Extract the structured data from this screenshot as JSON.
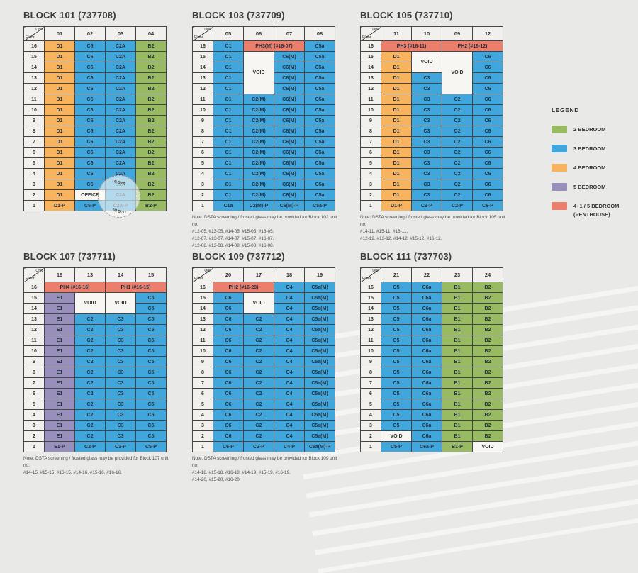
{
  "corner": {
    "unit": "Unit",
    "floor": "Floor"
  },
  "watermark": {
    "top": ".com",
    "bottom": ".com"
  },
  "legend": {
    "title": "LEGEND",
    "items": [
      {
        "label": "2 BEDROOM",
        "color": "#97ba62"
      },
      {
        "label": "3 BEDROOM",
        "color": "#41a6dc"
      },
      {
        "label": "4 BEDROOM",
        "color": "#f7b35e"
      },
      {
        "label": "5 BEDROOM",
        "color": "#9890ba"
      },
      {
        "label": "4+1 / 5 BEDROOM",
        "label2": "(PENTHOUSE)",
        "color": "#ec7f6c"
      }
    ]
  },
  "blocks": [
    {
      "title": "BLOCK 101 (737708)",
      "units": [
        "01",
        "02",
        "03",
        "04"
      ],
      "row_groups": [
        {
          "floors": [
            16,
            15,
            14,
            13,
            12,
            11,
            10,
            9,
            8,
            7,
            6,
            5,
            4,
            3
          ],
          "cells": [
            {
              "t": "D1",
              "c": "bed4"
            },
            {
              "t": "C6",
              "c": "bed3"
            },
            {
              "t": "C2A",
              "c": "bed3"
            },
            {
              "t": "B2",
              "c": "bed2"
            }
          ]
        },
        {
          "floors": [
            2
          ],
          "cells": [
            {
              "t": "D1",
              "c": "bed4"
            },
            {
              "t": "OFFICE",
              "c": "void"
            },
            {
              "t": "C2A",
              "c": "bed3"
            },
            {
              "t": "B2",
              "c": "bed2"
            }
          ]
        },
        {
          "floors": [
            1
          ],
          "cells": [
            {
              "t": "D1-P",
              "c": "bed4"
            },
            {
              "t": "C6-P",
              "c": "bed3"
            },
            {
              "t": "C2A-P",
              "c": "bed3"
            },
            {
              "t": "B2-P",
              "c": "bed2"
            }
          ]
        }
      ],
      "note_lines": []
    },
    {
      "title": "BLOCK 103 (737709)",
      "units": [
        "05",
        "06",
        "07",
        "08"
      ],
      "row_groups": [
        {
          "floors": [
            16
          ],
          "cells": [
            {
              "t": "C1",
              "c": "bed3"
            },
            {
              "t": "PH3(M) (#16-07)",
              "c": "ph",
              "cs": 2
            },
            {
              "t": "C5a",
              "c": "bed3"
            }
          ]
        },
        {
          "floors": [
            15
          ],
          "cells": [
            {
              "t": "C1",
              "c": "bed3"
            },
            {
              "t": "VOID",
              "c": "void",
              "rs": 4
            },
            {
              "t": "C6(M)",
              "c": "bed3"
            },
            {
              "t": "C5a",
              "c": "bed3"
            }
          ]
        },
        {
          "floors": [
            14,
            13,
            12
          ],
          "cells": [
            {
              "t": "C1",
              "c": "bed3"
            },
            {
              "t": "C6(M)",
              "c": "bed3"
            },
            {
              "t": "C5a",
              "c": "bed3"
            }
          ]
        },
        {
          "floors": [
            11,
            10,
            9,
            8,
            7,
            6,
            5,
            4,
            3,
            2
          ],
          "cells": [
            {
              "t": "C1",
              "c": "bed3"
            },
            {
              "t": "C2(M)",
              "c": "bed3"
            },
            {
              "t": "C6(M)",
              "c": "bed3"
            },
            {
              "t": "C5a",
              "c": "bed3"
            }
          ]
        },
        {
          "floors": [
            1
          ],
          "cells": [
            {
              "t": "C1a",
              "c": "bed3"
            },
            {
              "t": "C2(M)-P",
              "c": "bed3"
            },
            {
              "t": "C6(M)-P",
              "c": "bed3"
            },
            {
              "t": "C5a-P",
              "c": "bed3"
            }
          ]
        }
      ],
      "note_lines": [
        "Note: DSTA screening / frosted glass may be provided for Block 103 unit no:",
        "#12-05, #13-05, #14-05, #15-05, #16-05,",
        "#12-07, #13-07, #14-07, #15-07, #16-07,",
        "#12-08, #13-08, #14-08, #15-08, #16-08."
      ]
    },
    {
      "title": "BLOCK 105 (737710)",
      "units": [
        "11",
        "10",
        "09",
        "12"
      ],
      "row_groups": [
        {
          "floors": [
            16
          ],
          "cells": [
            {
              "t": "PH3 (#16-11)",
              "c": "ph",
              "cs": 2
            },
            {
              "t": "PH2 (#16-12)",
              "c": "ph",
              "cs": 2
            }
          ]
        },
        {
          "floors": [
            15
          ],
          "cells": [
            {
              "t": "D1",
              "c": "bed4"
            },
            {
              "t": "VOID",
              "c": "void",
              "rs": 2
            },
            {
              "t": "VOID",
              "c": "void",
              "rs": 4
            },
            {
              "t": "C6",
              "c": "bed3"
            }
          ]
        },
        {
          "floors": [
            14
          ],
          "cells": [
            {
              "t": "D1",
              "c": "bed4"
            },
            {
              "t": "C6",
              "c": "bed3"
            }
          ]
        },
        {
          "floors": [
            13,
            12
          ],
          "cells": [
            {
              "t": "D1",
              "c": "bed4"
            },
            {
              "t": "C3",
              "c": "bed3"
            },
            {
              "t": "C6",
              "c": "bed3"
            }
          ]
        },
        {
          "floors": [
            11,
            10,
            9,
            8,
            7,
            6,
            5,
            4,
            3,
            2
          ],
          "cells": [
            {
              "t": "D1",
              "c": "bed4"
            },
            {
              "t": "C3",
              "c": "bed3"
            },
            {
              "t": "C2",
              "c": "bed3"
            },
            {
              "t": "C6",
              "c": "bed3"
            }
          ]
        },
        {
          "floors": [
            1
          ],
          "cells": [
            {
              "t": "D1-P",
              "c": "bed4"
            },
            {
              "t": "C3-P",
              "c": "bed3"
            },
            {
              "t": "C2-P",
              "c": "bed3"
            },
            {
              "t": "C6-P",
              "c": "bed3"
            }
          ]
        }
      ],
      "note_lines": [
        "Note: DSTA screening / frosted glass may be provided for Block 105 unit no:",
        "#14-11, #15-11, #16-11,",
        "#12-12, #13-12, #14-12, #15-12, #16-12."
      ]
    },
    {
      "title": "BLOCK 107 (737711)",
      "units": [
        "16",
        "13",
        "14",
        "15"
      ],
      "row_groups": [
        {
          "floors": [
            16
          ],
          "cells": [
            {
              "t": "PH4 (#16-16)",
              "c": "ph",
              "cs": 2
            },
            {
              "t": "PH1 (#16-15)",
              "c": "ph",
              "cs": 2
            }
          ]
        },
        {
          "floors": [
            15
          ],
          "cells": [
            {
              "t": "E1",
              "c": "bed5"
            },
            {
              "t": "VOID",
              "c": "void",
              "rs": 2
            },
            {
              "t": "VOID",
              "c": "void",
              "rs": 2
            },
            {
              "t": "C5",
              "c": "bed3"
            }
          ]
        },
        {
          "floors": [
            14
          ],
          "cells": [
            {
              "t": "E1",
              "c": "bed5"
            },
            {
              "t": "C5",
              "c": "bed3"
            }
          ]
        },
        {
          "floors": [
            13,
            12,
            11,
            10,
            9,
            8,
            7,
            6,
            5,
            4,
            3,
            2
          ],
          "cells": [
            {
              "t": "E1",
              "c": "bed5"
            },
            {
              "t": "C2",
              "c": "bed3"
            },
            {
              "t": "C3",
              "c": "bed3"
            },
            {
              "t": "C5",
              "c": "bed3"
            }
          ]
        },
        {
          "floors": [
            1
          ],
          "cells": [
            {
              "t": "E1-P",
              "c": "bed5"
            },
            {
              "t": "C2-P",
              "c": "bed3"
            },
            {
              "t": "C3-P",
              "c": "bed3"
            },
            {
              "t": "C5-P",
              "c": "bed3"
            }
          ]
        }
      ],
      "note_lines": [
        "Note: DSTA screening / frosted glass may be provided for Block 107 unit no:",
        "#14-15, #15-15, #16-15, #14-16, #15-16, #16-16."
      ]
    },
    {
      "title": "BLOCK 109 (737712)",
      "units": [
        "20",
        "17",
        "18",
        "19"
      ],
      "row_groups": [
        {
          "floors": [
            16
          ],
          "cells": [
            {
              "t": "PH2 (#16-20)",
              "c": "ph",
              "cs": 2
            },
            {
              "t": "C4",
              "c": "bed3"
            },
            {
              "t": "C5a(M)",
              "c": "bed3"
            }
          ]
        },
        {
          "floors": [
            15
          ],
          "cells": [
            {
              "t": "C6",
              "c": "bed3"
            },
            {
              "t": "VOID",
              "c": "void",
              "rs": 2
            },
            {
              "t": "C4",
              "c": "bed3"
            },
            {
              "t": "C5a(M)",
              "c": "bed3"
            }
          ]
        },
        {
          "floors": [
            14
          ],
          "cells": [
            {
              "t": "C6",
              "c": "bed3"
            },
            {
              "t": "C4",
              "c": "bed3"
            },
            {
              "t": "C5a(M)",
              "c": "bed3"
            }
          ]
        },
        {
          "floors": [
            13,
            12,
            11,
            10,
            9,
            8,
            7,
            6,
            5,
            4,
            3,
            2
          ],
          "cells": [
            {
              "t": "C6",
              "c": "bed3"
            },
            {
              "t": "C2",
              "c": "bed3"
            },
            {
              "t": "C4",
              "c": "bed3"
            },
            {
              "t": "C5a(M)",
              "c": "bed3"
            }
          ]
        },
        {
          "floors": [
            1
          ],
          "cells": [
            {
              "t": "C6-P",
              "c": "bed3"
            },
            {
              "t": "C2-P",
              "c": "bed3"
            },
            {
              "t": "C4-P",
              "c": "bed3"
            },
            {
              "t": "C5a(M)-P",
              "c": "bed3"
            }
          ]
        }
      ],
      "note_lines": [
        "Note: DSTA screening / frosted glass may be provided for Block 109 unit no:",
        "#14-18, #15-18, #16-18, #14-19, #15-19, #16-19,",
        "#14-20, #15-20, #16-20."
      ]
    },
    {
      "title": "BLOCK 111 (737703)",
      "units": [
        "21",
        "22",
        "23",
        "24"
      ],
      "row_groups": [
        {
          "floors": [
            16,
            15,
            14,
            13,
            12,
            11,
            10,
            9,
            8,
            7,
            6,
            5,
            4,
            3
          ],
          "cells": [
            {
              "t": "C5",
              "c": "bed3"
            },
            {
              "t": "C6a",
              "c": "bed3"
            },
            {
              "t": "B1",
              "c": "bed2"
            },
            {
              "t": "B2",
              "c": "bed2"
            }
          ]
        },
        {
          "floors": [
            2
          ],
          "cells": [
            {
              "t": "VOID",
              "c": "void"
            },
            {
              "t": "C6a",
              "c": "bed3"
            },
            {
              "t": "B1",
              "c": "bed2"
            },
            {
              "t": "B2",
              "c": "bed2"
            }
          ]
        },
        {
          "floors": [
            1
          ],
          "cells": [
            {
              "t": "C5-P",
              "c": "bed3"
            },
            {
              "t": "C6a-P",
              "c": "bed3"
            },
            {
              "t": "B1-P",
              "c": "bed2"
            },
            {
              "t": "VOID",
              "c": "void"
            }
          ]
        }
      ],
      "note_lines": []
    }
  ]
}
